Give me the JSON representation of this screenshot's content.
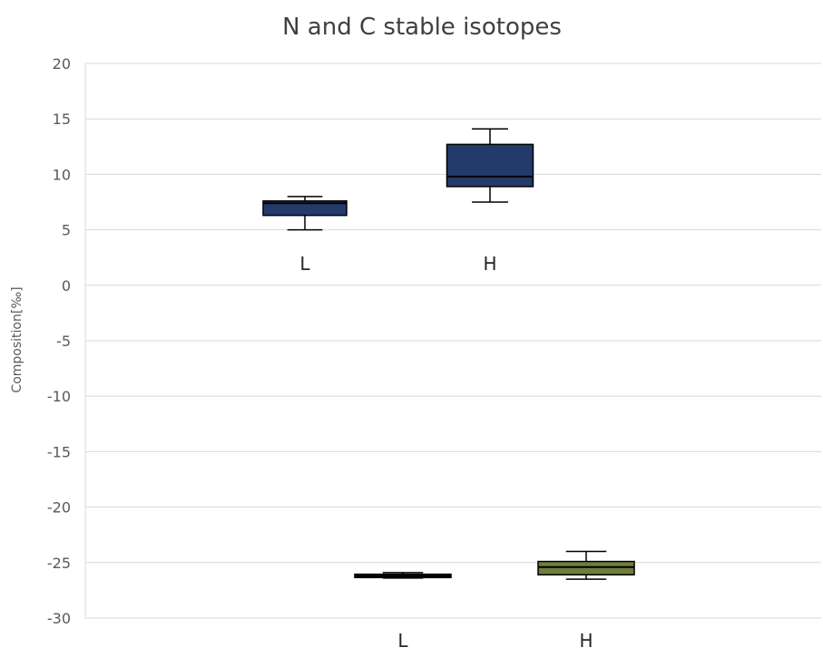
{
  "chart_data": {
    "type": "box",
    "title": "N and C stable isotopes",
    "xlabel": "",
    "ylabel": "Composition[‰]",
    "ylim": [
      -30,
      20
    ],
    "yticks": [
      20,
      15,
      10,
      5,
      0,
      -5,
      -10,
      -15,
      -20,
      -25,
      -30
    ],
    "grid": true,
    "legend": "none",
    "groups": [
      {
        "boxes": [
          {
            "label": "L",
            "min": 5.0,
            "q1": 6.3,
            "median": 7.4,
            "q3": 7.6,
            "max": 8.0,
            "color": "#243a6b"
          },
          {
            "label": "H",
            "min": 7.5,
            "q1": 8.9,
            "median": 9.8,
            "q3": 12.7,
            "max": 14.1,
            "color": "#243a6b"
          }
        ]
      },
      {
        "boxes": [
          {
            "label": "L",
            "min": -26.4,
            "q1": -26.35,
            "median": -26.2,
            "q3": -26.05,
            "max": -25.9,
            "color": "#243a6b"
          },
          {
            "label": "H",
            "min": -26.5,
            "q1": -26.1,
            "median": -25.4,
            "q3": -24.9,
            "max": -24.0,
            "color": "#6f7d3a"
          }
        ]
      }
    ]
  }
}
